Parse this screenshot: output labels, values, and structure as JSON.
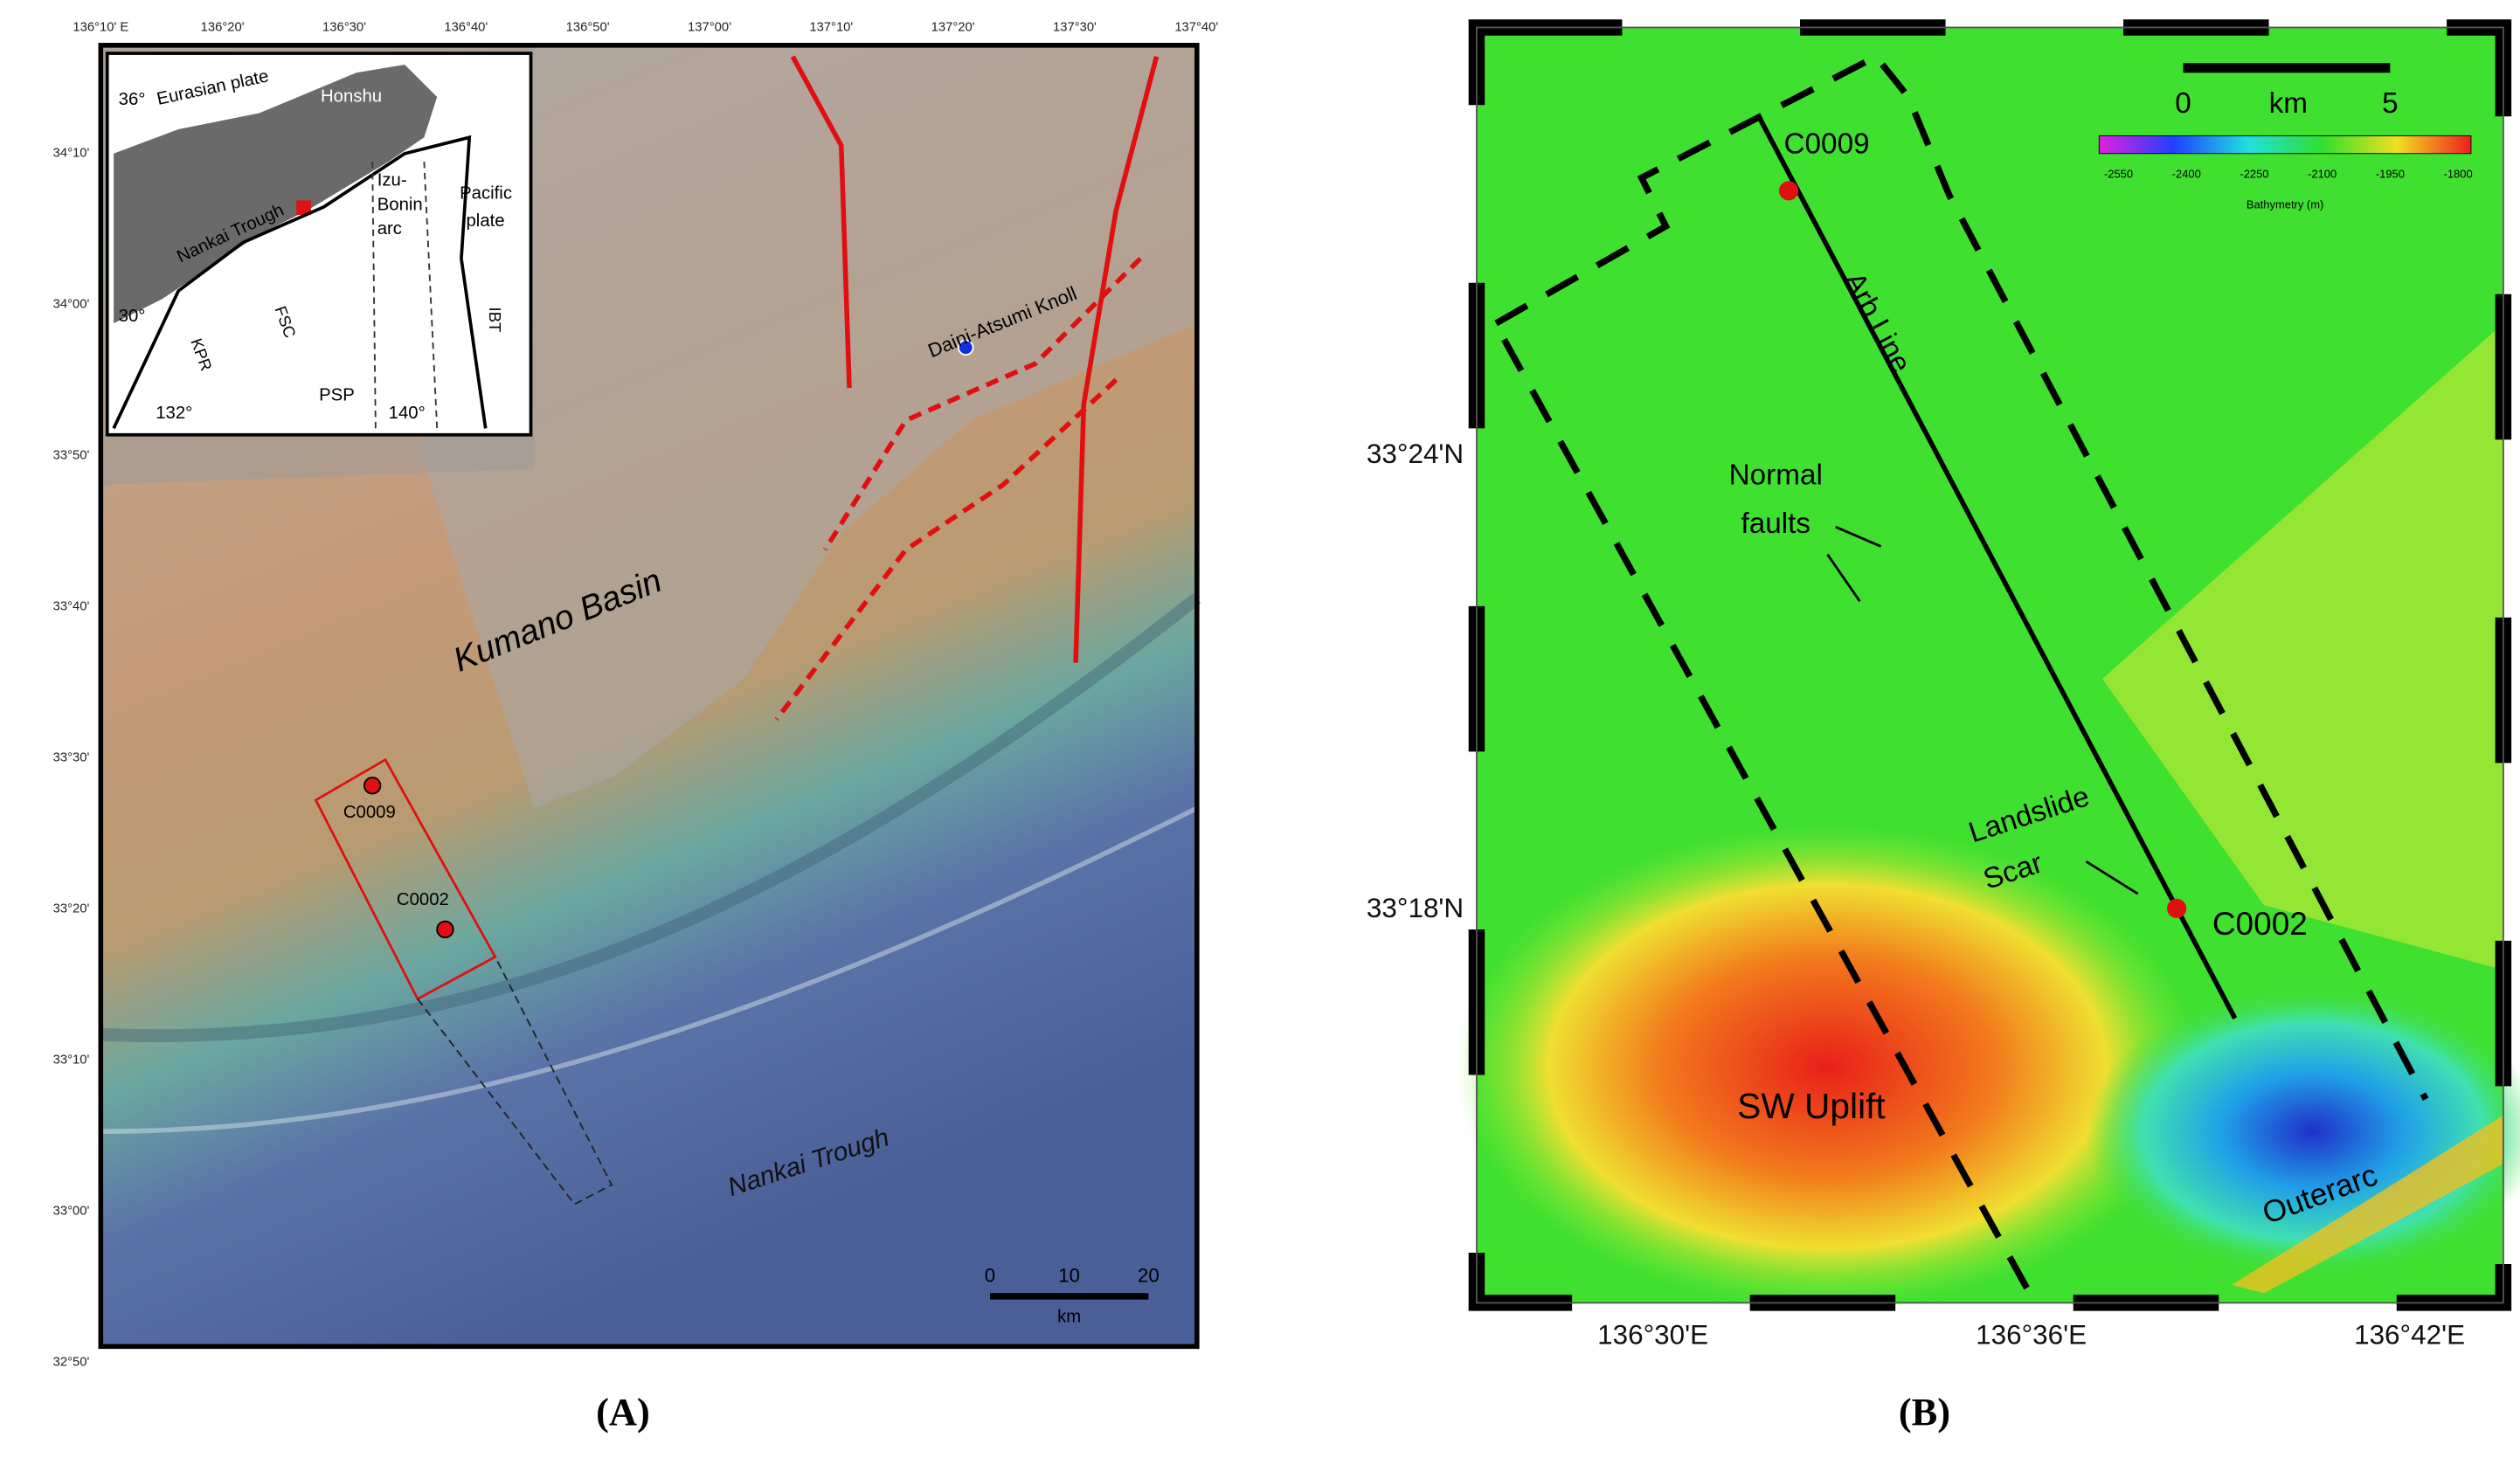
{
  "panel_a": {
    "caption": "(A)",
    "lon_labels": [
      "136°10' E",
      "136°20'",
      "136°30'",
      "136°40'",
      "136°50'",
      "137°00'",
      "137°10'",
      "137°20'",
      "137°30'",
      "137°40'"
    ],
    "lat_labels": [
      "34°10'",
      "34°00'",
      "33°50'",
      "33°40'",
      "33°30'",
      "33°20'",
      "33°10'",
      "33°00'",
      "32°50'"
    ],
    "labels": {
      "basin": "Kumano Basin",
      "trough": "Nankai Trough",
      "knoll": "Daini-Atsumi Knoll",
      "site1": "C0009",
      "site2": "C0002"
    },
    "scale_bar": [
      "0",
      "10",
      "20",
      "km"
    ],
    "inset": {
      "lat1": "36°",
      "eurasian": "Eurasian plate",
      "honshu": "Honshu",
      "izu": [
        "Izu-",
        "Bonin",
        "arc"
      ],
      "pacific": [
        "Pacific",
        "plate"
      ],
      "nankai": "Nankai Trough",
      "fsc": "FSC",
      "kpr": "KPR",
      "psp": "PSP",
      "ibt": "IBT",
      "lat2": "30°",
      "lon1": "132°",
      "lon2": "140°"
    }
  },
  "panel_b": {
    "caption": "(B)",
    "lat_labels": [
      "33°24'N",
      "33°18'N"
    ],
    "lon_labels": [
      "136°30'E",
      "136°36'E",
      "136°42'E"
    ],
    "scale_bar": [
      "0",
      "km",
      "5"
    ],
    "colorbar_ticks": [
      "-2550",
      "-2400",
      "-2250",
      "-2100",
      "-1950",
      "-1800"
    ],
    "colorbar_title": "Bathymetry (m)",
    "labels": {
      "site1": "C0009",
      "line": "Arb Line",
      "faults": [
        "Normal",
        "faults"
      ],
      "scar": [
        "Landslide",
        "Scar"
      ],
      "site2": "C0002",
      "uplift": "SW Uplift",
      "outerarc": "Outerarc"
    }
  }
}
